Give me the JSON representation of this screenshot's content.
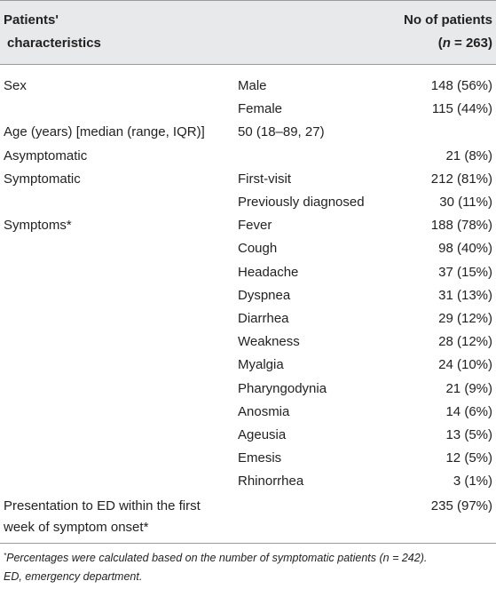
{
  "header": {
    "col1_line1": "Patients'",
    "col1_line2": "characteristics",
    "col3_line1": "No of patients",
    "col3_paren_open": "(",
    "col3_n": "n",
    "col3_eq": " = 263)"
  },
  "rows": [
    {
      "label": "Sex",
      "sub": "Male",
      "value": "148 (56%)"
    },
    {
      "label": "",
      "sub": "Female",
      "value": "115 (44%)"
    },
    {
      "label": "Age (years) [median (range, IQR)]",
      "sub": "50 (18–89, 27)",
      "value": ""
    },
    {
      "label": "Asymptomatic",
      "sub": "",
      "value": "21 (8%)"
    },
    {
      "label": "Symptomatic",
      "sub": "First-visit",
      "value": "212 (81%)"
    },
    {
      "label": "",
      "sub": "Previously diagnosed",
      "value": "30 (11%)"
    },
    {
      "label": "Symptoms*",
      "sub": "Fever",
      "value": "188 (78%)"
    },
    {
      "label": "",
      "sub": "Cough",
      "value": "98 (40%)"
    },
    {
      "label": "",
      "sub": "Headache",
      "value": "37 (15%)"
    },
    {
      "label": "",
      "sub": "Dyspnea",
      "value": "31 (13%)"
    },
    {
      "label": "",
      "sub": "Diarrhea",
      "value": "29 (12%)"
    },
    {
      "label": "",
      "sub": "Weakness",
      "value": "28 (12%)"
    },
    {
      "label": "",
      "sub": "Myalgia",
      "value": "24 (10%)"
    },
    {
      "label": "",
      "sub": "Pharyngodynia",
      "value": "21 (9%)"
    },
    {
      "label": "",
      "sub": "Anosmia",
      "value": "14 (6%)"
    },
    {
      "label": "",
      "sub": "Ageusia",
      "value": "13 (5%)"
    },
    {
      "label": "",
      "sub": "Emesis",
      "value": "12 (5%)"
    },
    {
      "label": "",
      "sub": "Rhinorrhea",
      "value": "3 (1%)"
    }
  ],
  "last_row": {
    "label_line1": "Presentation to ED within the first",
    "label_line2": "week of symptom onset*",
    "value": "235 (97%)"
  },
  "footnote": {
    "mark": "*",
    "line1": "Percentages were calculated based on the number of symptomatic patients (n = 242).",
    "line2": "ED, emergency department."
  }
}
